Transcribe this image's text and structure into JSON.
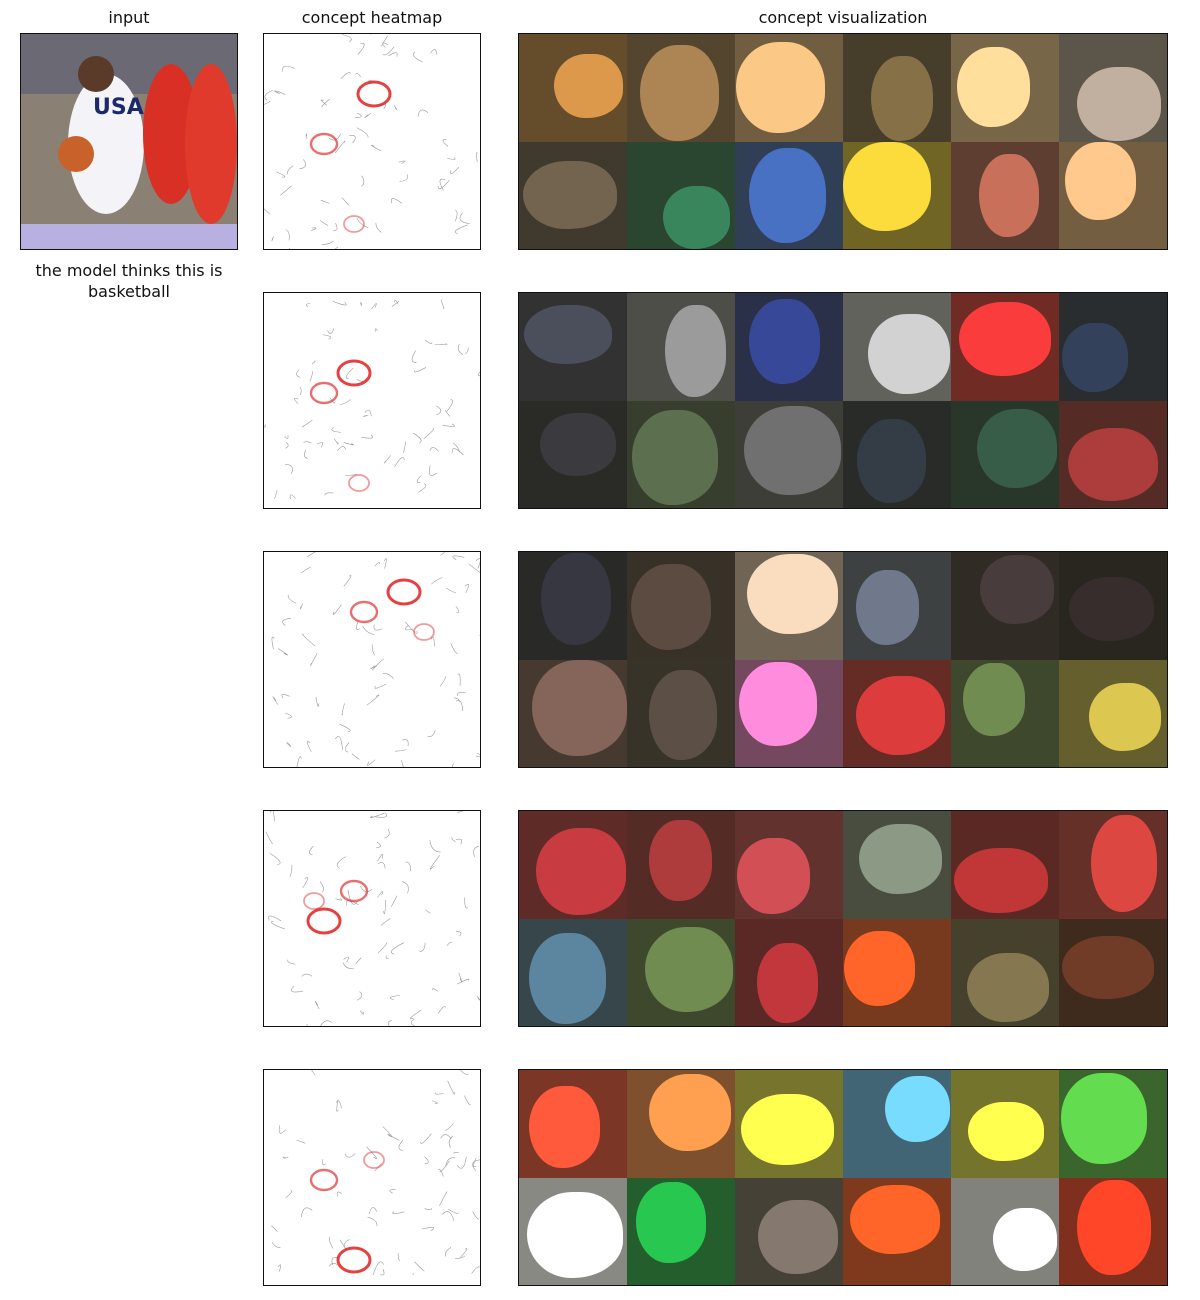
{
  "headers": {
    "input": "input",
    "heatmap": "concept heatmap",
    "visualization": "concept visualization"
  },
  "prediction": "the model thinks this is basketball",
  "input_image": {
    "description_icon": "basketball-player-photo-icon",
    "jersey_text": "USA"
  },
  "concepts": [
    {
      "tiles": [
        "#b07a3c",
        "#8a6a44",
        "#c9a06a",
        "#6b5a3a",
        "#d8b27c",
        "#9a8c80",
        "#5c5040",
        "#2e6b4a",
        "#3a5a9c",
        "#c9b030",
        "#a05a48",
        "#d0a070"
      ]
    },
    {
      "tiles": [
        "#3c3f4a",
        "#7c7c7c",
        "#2c3a7a",
        "#a8a8a8",
        "#c83030",
        "#2a3448",
        "#2e2e32",
        "#4a5a40",
        "#5a5a5a",
        "#2a3038",
        "#2c4a3a",
        "#8a3030"
      ]
    },
    {
      "tiles": [
        "#2c2c34",
        "#4a3c34",
        "#c8b098",
        "#5a6070",
        "#3a3030",
        "#2c2424",
        "#6a5048",
        "#4a4038",
        "#d070b0",
        "#b03030",
        "#5a7040",
        "#b0a040"
      ]
    },
    {
      "tiles": [
        "#a03034",
        "#8c3030",
        "#a84044",
        "#707a6a",
        "#9a2c2c",
        "#b03a34",
        "#4a6a80",
        "#5a7040",
        "#9a2c30",
        "#d85020",
        "#6a6040",
        "#5a3020"
      ]
    },
    {
      "tiles": [
        "#e04830",
        "#e88040",
        "#d8d040",
        "#60b0e0",
        "#d0d040",
        "#50b040",
        "#ffffff",
        "#20a040",
        "#6a6058",
        "#e85020",
        "#f0f0f0",
        "#e83820"
      ]
    }
  ]
}
